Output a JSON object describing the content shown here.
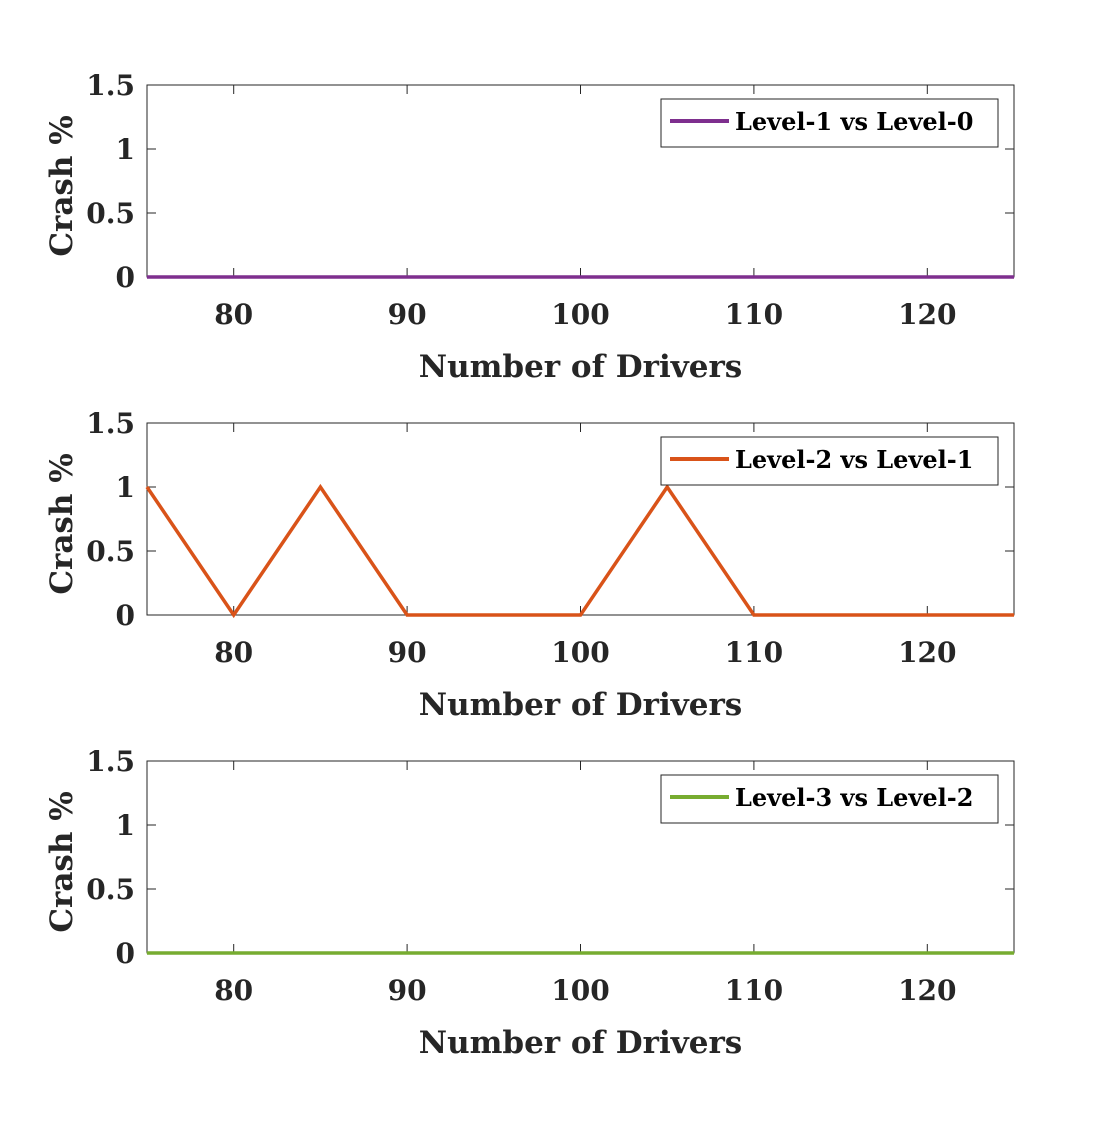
{
  "chart_data": [
    {
      "type": "line",
      "xlabel": "Number of Drivers",
      "ylabel": "Crash %",
      "xlim": [
        75,
        125
      ],
      "ylim": [
        0,
        1.5
      ],
      "xticks": [
        "80",
        "90",
        "100",
        "110",
        "120"
      ],
      "yticks": [
        "0",
        "0.5",
        "1",
        "1.5"
      ],
      "grid": false,
      "legend_position": "top-right",
      "x": [
        75,
        80,
        85,
        90,
        95,
        100,
        105,
        110,
        115,
        120,
        125
      ],
      "series": [
        {
          "name": "Level-1 vs Level-0",
          "color": "#7E2F8E",
          "values": [
            0,
            0,
            0,
            0,
            0,
            0,
            0,
            0,
            0,
            0,
            0
          ]
        }
      ]
    },
    {
      "type": "line",
      "xlabel": "Number of Drivers",
      "ylabel": "Crash %",
      "xlim": [
        75,
        125
      ],
      "ylim": [
        0,
        1.5
      ],
      "xticks": [
        "80",
        "90",
        "100",
        "110",
        "120"
      ],
      "yticks": [
        "0",
        "0.5",
        "1",
        "1.5"
      ],
      "grid": false,
      "legend_position": "top-right",
      "x": [
        75,
        80,
        85,
        90,
        95,
        100,
        105,
        110,
        115,
        120,
        125
      ],
      "series": [
        {
          "name": "Level-2 vs Level-1",
          "color": "#D95319",
          "values": [
            1,
            0,
            1,
            0,
            0,
            0,
            1,
            0,
            0,
            0,
            0
          ]
        }
      ]
    },
    {
      "type": "line",
      "xlabel": "Number of Drivers",
      "ylabel": "Crash %",
      "xlim": [
        75,
        125
      ],
      "ylim": [
        0,
        1.5
      ],
      "xticks": [
        "80",
        "90",
        "100",
        "110",
        "120"
      ],
      "yticks": [
        "0",
        "0.5",
        "1",
        "1.5"
      ],
      "grid": false,
      "legend_position": "top-right",
      "x": [
        75,
        80,
        85,
        90,
        95,
        100,
        105,
        110,
        115,
        120,
        125
      ],
      "series": [
        {
          "name": "Level-3 vs Level-2",
          "color": "#77AC30",
          "values": [
            0,
            0,
            0,
            0,
            0,
            0,
            0,
            0,
            0,
            0,
            0
          ]
        }
      ]
    }
  ]
}
